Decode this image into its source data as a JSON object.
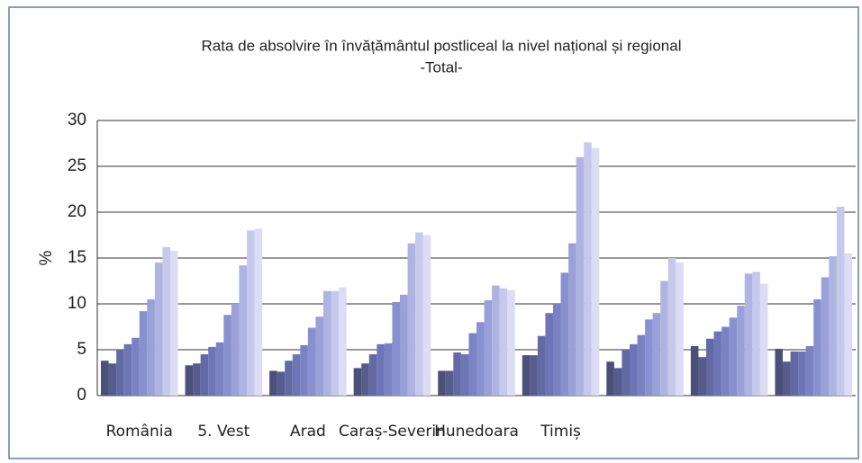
{
  "chart_data": {
    "type": "bar",
    "title": "Rata de absolvire în învățământul postliceal la nivel național și regional",
    "subtitle": "-Total-",
    "ylabel": "%",
    "categories": [
      "România",
      "5. Vest",
      "Arad",
      "Caraș-Severin",
      "Hunedoara",
      "Timiș",
      null,
      null,
      null
    ],
    "series": [
      {
        "color": "#4b5079",
        "values": [
          3.8,
          3.3,
          2.7,
          3.0,
          2.7,
          4.4,
          3.7,
          5.4,
          5.1
        ]
      },
      {
        "color": "#565c8c",
        "values": [
          3.5,
          3.5,
          2.6,
          3.5,
          2.7,
          4.4,
          3.0,
          4.2,
          3.7
        ]
      },
      {
        "color": "#6269a3",
        "values": [
          5.0,
          4.5,
          3.8,
          4.5,
          4.7,
          6.5,
          5.0,
          6.2,
          4.8
        ]
      },
      {
        "color": "#6d75b6",
        "values": [
          5.6,
          5.3,
          4.5,
          5.6,
          4.5,
          9.0,
          5.6,
          7.0,
          4.8
        ]
      },
      {
        "color": "#7a82c4",
        "values": [
          6.3,
          5.8,
          5.5,
          5.7,
          6.8,
          10.0,
          6.6,
          7.5,
          5.4
        ]
      },
      {
        "color": "#8990cf",
        "values": [
          9.2,
          8.8,
          7.4,
          10.2,
          8.0,
          13.4,
          8.3,
          8.5,
          10.5
        ]
      },
      {
        "color": "#9aa0d8",
        "values": [
          10.5,
          10.0,
          8.6,
          11.0,
          10.4,
          16.6,
          9.0,
          9.8,
          12.9
        ]
      },
      {
        "color": "#afb3e2",
        "values": [
          14.5,
          14.2,
          11.4,
          16.6,
          12.0,
          26.0,
          12.5,
          13.3,
          15.2
        ]
      },
      {
        "color": "#c6c8ec",
        "values": [
          16.2,
          18.0,
          11.4,
          17.8,
          11.7,
          27.6,
          15.0,
          13.5,
          20.6
        ]
      },
      {
        "color": "#dcdcf4",
        "values": [
          15.8,
          18.2,
          11.8,
          17.5,
          11.5,
          27.0,
          14.5,
          12.2,
          15.5
        ]
      }
    ],
    "ylim": [
      0,
      30
    ],
    "yticks": [
      0,
      5,
      10,
      15,
      20,
      25,
      30
    ],
    "grid": true
  }
}
